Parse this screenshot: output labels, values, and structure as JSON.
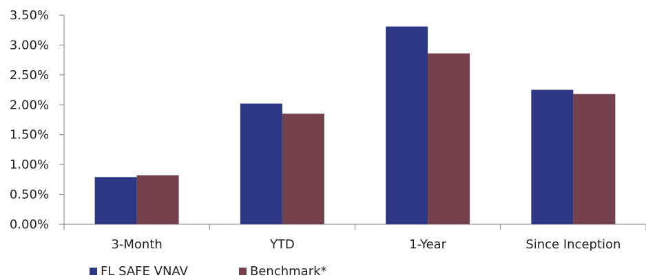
{
  "chart_data": {
    "type": "bar",
    "categories": [
      "3-Month",
      "YTD",
      "1-Year",
      "Since Inception"
    ],
    "series": [
      {
        "name": "FL SAFE VNAV",
        "values": [
          0.79,
          2.02,
          3.31,
          2.25
        ],
        "color": "#2e3784"
      },
      {
        "name": "Benchmark*",
        "values": [
          0.82,
          1.85,
          2.86,
          2.18
        ],
        "color": "#74414c"
      }
    ],
    "ylim": [
      0,
      3.5
    ],
    "yticks": [
      0,
      0.5,
      1.0,
      1.5,
      2.0,
      2.5,
      3.0,
      3.5
    ],
    "ytick_labels": [
      "0.00%",
      "0.50%",
      "1.00%",
      "1.50%",
      "2.00%",
      "2.50%",
      "3.00%",
      "3.50%"
    ],
    "grid": false,
    "legend_position": "bottom-left",
    "axis_color": "#808080"
  }
}
